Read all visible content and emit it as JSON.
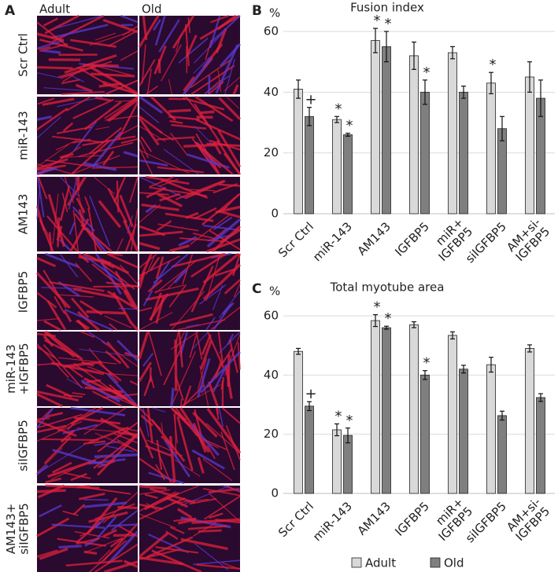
{
  "panel_a": {
    "label": "A",
    "columns": [
      "Adult",
      "Old"
    ],
    "rows": [
      "Scr Ctrl",
      "miR-143",
      "AM143",
      "IGFBP5",
      "miR-143\n+IGFBP5",
      "siIGFBP5",
      "AM143+\nsiIGFBP5"
    ]
  },
  "chart_data": [
    {
      "type": "bar",
      "panel": "B",
      "title": "Fusion index",
      "y_label": "%",
      "categories": [
        "Scr Ctrl",
        "miR-143",
        "AM143",
        "IGFBP5",
        "miR+\nIGFBP5",
        "siIGFBP5",
        "AM+si-\nIGFBP5"
      ],
      "series": [
        {
          "color": "#d9d9d9",
          "values": [
            41,
            31,
            57,
            52,
            53,
            43,
            45
          ],
          "errors": [
            3,
            1,
            4,
            4.5,
            2,
            3.5,
            5
          ],
          "marks": [
            null,
            "*",
            "*",
            null,
            null,
            "*",
            null
          ]
        },
        {
          "color": "#7f7f7f",
          "values": [
            32,
            26,
            55,
            40,
            40,
            28,
            38
          ],
          "errors": [
            3,
            0.5,
            5,
            4,
            2,
            4,
            6
          ],
          "marks": [
            "+",
            "*",
            "*",
            "*",
            null,
            null,
            null
          ]
        }
      ],
      "ylim": [
        0,
        60
      ],
      "yticks": [
        0,
        20,
        40,
        60
      ],
      "grid": true
    },
    {
      "type": "bar",
      "panel": "C",
      "title": "Total myotube area",
      "y_label": "%",
      "categories": [
        "Scr Ctrl",
        "miR-143",
        "AM143",
        "IGFBP5",
        "miR+\nIGFBP5",
        "siIGFBP5",
        "AM+si-\nIGFBP5"
      ],
      "series": [
        {
          "name": "Adult",
          "color": "#d9d9d9",
          "values": [
            48,
            21.5,
            58.4,
            57,
            53.4,
            43.5,
            49
          ],
          "errors": [
            1,
            2,
            2,
            1,
            1.2,
            2.5,
            1.2
          ],
          "marks": [
            null,
            "*",
            "*",
            null,
            null,
            null,
            null
          ]
        },
        {
          "name": "Old",
          "color": "#7f7f7f",
          "values": [
            29.5,
            19.6,
            56,
            40,
            42,
            26.3,
            32.4
          ],
          "errors": [
            1.5,
            2.5,
            0.5,
            1.5,
            1.3,
            1.5,
            1.3
          ],
          "marks": [
            "+",
            "*",
            "*",
            "*",
            null,
            null,
            null
          ]
        }
      ],
      "ylim": [
        0,
        60
      ],
      "yticks": [
        0,
        20,
        40,
        60
      ],
      "grid": true,
      "legend": "bottom"
    }
  ]
}
